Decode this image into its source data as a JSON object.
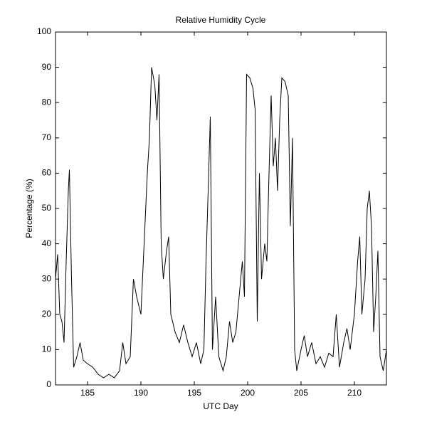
{
  "chart_data": {
    "type": "line",
    "title": "Relative Humidity Cycle",
    "x_label": "UTC Day",
    "y_label": "Percentage (%)",
    "x": [
      182.0,
      182.2,
      182.4,
      182.6,
      182.8,
      183.0,
      183.2,
      183.3,
      183.5,
      183.7,
      184.0,
      184.3,
      184.6,
      185.0,
      185.5,
      186.0,
      186.5,
      187.0,
      187.5,
      188.0,
      188.3,
      188.6,
      189.0,
      189.3,
      189.6,
      190.0,
      190.3,
      190.6,
      190.8,
      191.0,
      191.3,
      191.5,
      191.7,
      191.9,
      192.1,
      192.4,
      192.6,
      192.8,
      193.2,
      193.6,
      194.0,
      194.4,
      194.8,
      195.2,
      195.6,
      195.9,
      196.1,
      196.3,
      196.5,
      196.7,
      197.0,
      197.3,
      197.7,
      198.0,
      198.3,
      198.6,
      198.9,
      199.2,
      199.5,
      199.7,
      199.9,
      200.2,
      200.5,
      200.7,
      200.9,
      201.1,
      201.3,
      201.6,
      201.8,
      202.0,
      202.2,
      202.4,
      202.6,
      202.8,
      203.0,
      203.2,
      203.5,
      203.8,
      204.0,
      204.2,
      204.4,
      204.6,
      205.0,
      205.3,
      205.6,
      206.0,
      206.4,
      206.8,
      207.2,
      207.6,
      208.0,
      208.3,
      208.6,
      209.0,
      209.3,
      209.6,
      210.0,
      210.3,
      210.5,
      210.7,
      211.0,
      211.2,
      211.4,
      211.6,
      211.8,
      212.0,
      212.2,
      212.4,
      212.7,
      213.0
    ],
    "series": [
      {
        "color": "#000000",
        "values": [
          30,
          37,
          20,
          18,
          12,
          35,
          55,
          61,
          30,
          5,
          8,
          12,
          7,
          6,
          5,
          3,
          2,
          3,
          2,
          4,
          12,
          6,
          8,
          30,
          25,
          20,
          40,
          60,
          70,
          90,
          85,
          75,
          88,
          40,
          30,
          38,
          42,
          20,
          15,
          12,
          17,
          12,
          8,
          12,
          6,
          10,
          35,
          55,
          76,
          10,
          25,
          8,
          4,
          8,
          18,
          12,
          15,
          25,
          35,
          25,
          88,
          87,
          84,
          78,
          18,
          60,
          30,
          40,
          35,
          60,
          82,
          62,
          70,
          55,
          75,
          87,
          86,
          82,
          45,
          70,
          10,
          4,
          10,
          14,
          8,
          12,
          6,
          8,
          5,
          9,
          8,
          20,
          5,
          12,
          16,
          10,
          20,
          35,
          42,
          20,
          30,
          50,
          55,
          45,
          15,
          25,
          38,
          8,
          4,
          10
        ]
      }
    ],
    "xlim": [
      182,
      213
    ],
    "ylim": [
      0,
      100
    ],
    "xticks": [
      185,
      190,
      195,
      200,
      205,
      210
    ],
    "yticks": [
      0,
      10,
      20,
      30,
      40,
      50,
      60,
      70,
      80,
      90,
      100
    ]
  }
}
